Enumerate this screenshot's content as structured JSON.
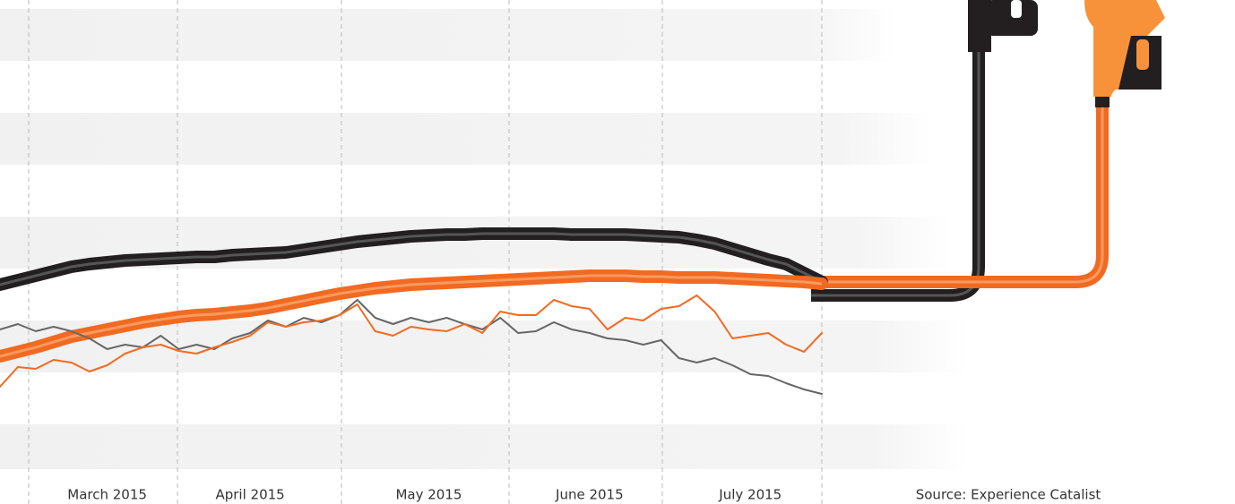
{
  "chart_data": {
    "type": "line",
    "source": "Source: Experience Catalist",
    "categories": [
      null,
      null,
      null,
      null,
      null,
      null,
      "March 2015",
      null,
      null,
      null,
      null,
      null,
      null,
      null,
      "April 2015",
      null,
      null,
      null,
      null,
      null,
      null,
      null,
      null,
      null,
      "May 2015",
      null,
      null,
      null,
      null,
      null,
      null,
      null,
      null,
      "June 2015",
      null,
      null,
      null,
      null,
      null,
      null,
      null,
      null,
      "July 2015",
      null,
      null,
      null,
      null
    ],
    "ylim": [
      0,
      100
    ],
    "series": [
      {
        "color": "#231f20",
        "width": 14,
        "values": [
          36.4,
          37.4,
          38.4,
          39.4,
          40.4,
          41,
          41.4,
          41.8,
          42,
          42.2,
          42.4,
          42.6,
          42.6,
          43,
          43.2,
          43.4,
          43.6,
          44.2,
          44.8,
          45.4,
          46,
          46.4,
          46.8,
          47.2,
          47.4,
          47.6,
          47.6,
          47.8,
          47.8,
          47.8,
          47.8,
          47.8,
          47.6,
          47.6,
          47.6,
          47.6,
          47.4,
          47.2,
          47,
          46.4,
          45.6,
          44.4,
          43.2,
          42,
          41,
          39,
          37
        ]
      },
      {
        "color": "#f26a21",
        "width": 14,
        "values": [
          20.4,
          21.4,
          22.4,
          23.6,
          24.8,
          25.6,
          26.4,
          27.2,
          28,
          28.6,
          29.2,
          29.6,
          29.8,
          30.2,
          30.6,
          31.2,
          32,
          32.8,
          33.6,
          34.4,
          35,
          35.6,
          36,
          36.4,
          36.6,
          36.8,
          37,
          37.2,
          37.4,
          37.6,
          37.8,
          38,
          38.2,
          38.4,
          38.4,
          38.4,
          38.2,
          38.2,
          38,
          38,
          38,
          37.8,
          37.6,
          37.4,
          37.2,
          37,
          36.6
        ]
      },
      {
        "color": "#666666",
        "width": 2,
        "values": [
          26.4,
          27.6,
          26,
          27,
          26,
          24.4,
          22,
          23,
          22.4,
          25,
          22,
          23,
          22,
          24.4,
          25.6,
          28.4,
          27,
          29,
          28,
          29.6,
          33,
          29,
          27.6,
          29,
          28,
          29,
          27.6,
          26.4,
          29,
          25.6,
          26,
          28,
          26.4,
          25.6,
          24.4,
          24,
          23,
          24,
          20,
          19,
          20,
          18.4,
          16.4,
          16,
          14.4,
          13,
          12
        ]
      },
      {
        "color": "#f26a21",
        "width": 2,
        "values": [
          13.6,
          18,
          17.6,
          19.6,
          19,
          17,
          18.4,
          21,
          22.4,
          23,
          21.6,
          21,
          22.4,
          23.6,
          25,
          28,
          27,
          28,
          28.4,
          29.6,
          32,
          26,
          25,
          27,
          26.4,
          26,
          27.6,
          25.6,
          30.4,
          29.6,
          29.6,
          33,
          31.6,
          31,
          26.4,
          29,
          28.4,
          31,
          31.6,
          34,
          30.4,
          24.4,
          25,
          25.6,
          23,
          21.4,
          25.6
        ]
      }
    ]
  }
}
